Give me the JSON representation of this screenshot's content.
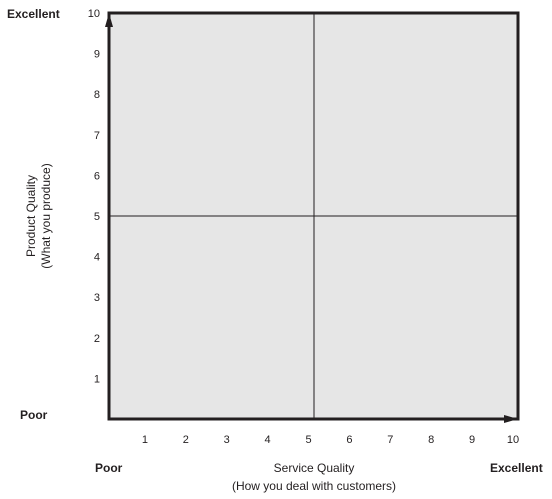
{
  "chart_data": {
    "type": "scatter",
    "title": "",
    "xlabel_line1": "Service Quality",
    "xlabel_line2": "(How you deal with customers)",
    "ylabel_line1": "Product Quality",
    "ylabel_line2": "(What you produce)",
    "x_ticks": [
      "1",
      "2",
      "3",
      "4",
      "5",
      "6",
      "7",
      "8",
      "9",
      "10"
    ],
    "y_ticks": [
      "1",
      "2",
      "3",
      "4",
      "5",
      "6",
      "7",
      "8",
      "9",
      "10"
    ],
    "xlim": [
      0,
      10
    ],
    "ylim": [
      0,
      10
    ],
    "x_low_label": "Poor",
    "x_high_label": "Excellent",
    "y_low_label": "Poor",
    "y_high_label": "Excellent",
    "quadrant_divider_x": 5,
    "quadrant_divider_y": 5,
    "series": [],
    "grid": false,
    "plot_background": "#e6e6e6",
    "line_color": "#231f20"
  }
}
